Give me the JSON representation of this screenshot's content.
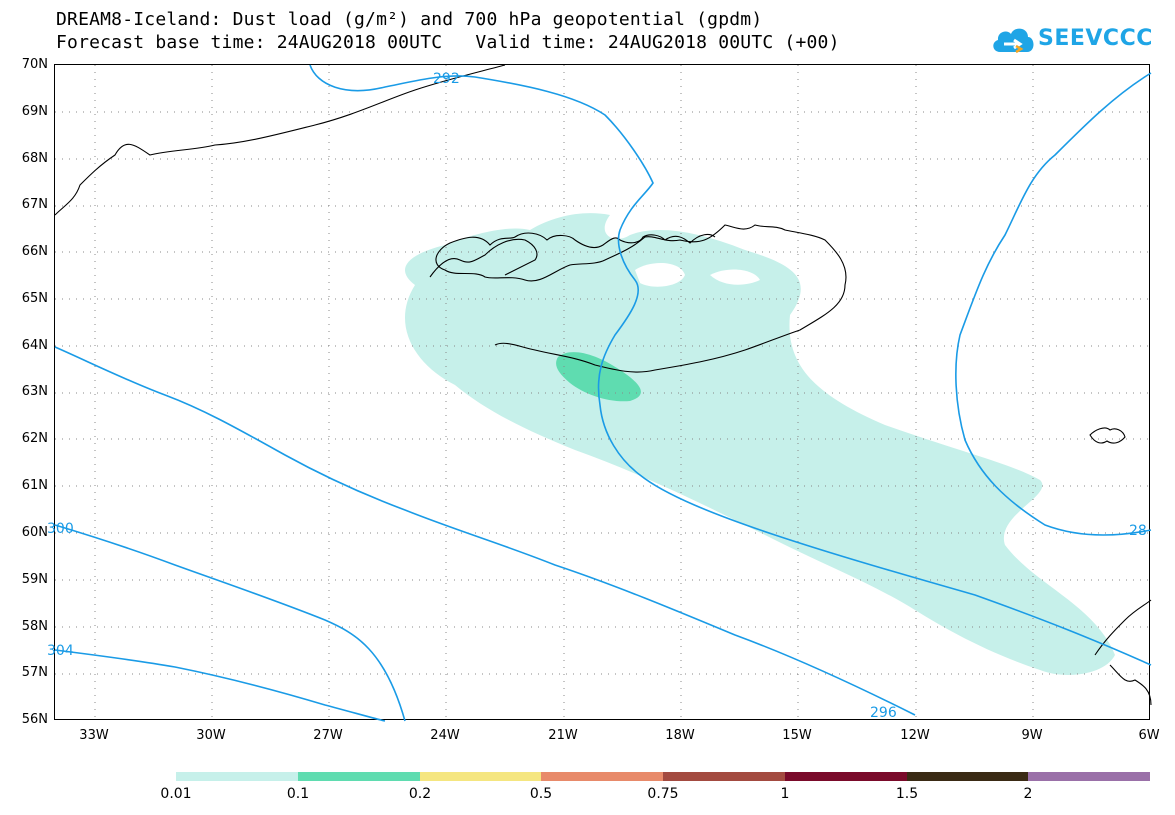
{
  "header": {
    "title_line1": "DREAM8-Iceland: Dust load (g/m²) and 700 hPa geopotential (gpdm)",
    "title_line2": "Forecast base time: 24AUG2018 00UTC   Valid time: 24AUG2018 00UTC (+00)"
  },
  "logo": {
    "text": "SEEVCCC",
    "icon": "cloud-logo-icon",
    "color": "#1fa5e6"
  },
  "map": {
    "lat_labels": [
      "70N",
      "69N",
      "68N",
      "67N",
      "66N",
      "65N",
      "64N",
      "63N",
      "62N",
      "61N",
      "60N",
      "59N",
      "58N",
      "57N",
      "56N"
    ],
    "lon_labels": [
      "33W",
      "30W",
      "27W",
      "24W",
      "21W",
      "18W",
      "15W",
      "12W",
      "9W",
      "6W"
    ],
    "contour_labels": [
      "292",
      "296",
      "300",
      "304",
      "28"
    ],
    "contour_color": "#1a9be6",
    "dust_light_color": "#c6f0ea",
    "dust_mid_color": "#5fdcb0"
  },
  "colorbar": {
    "labels": [
      "0.01",
      "0.1",
      "0.2",
      "0.5",
      "0.75",
      "1",
      "1.5",
      "2"
    ],
    "colors": [
      "#c6f0ea",
      "#5fdcb0",
      "#f5e680",
      "#e88a6a",
      "#a34a40",
      "#7a0a2a",
      "#3a2a14",
      "#9a70a8"
    ]
  }
}
